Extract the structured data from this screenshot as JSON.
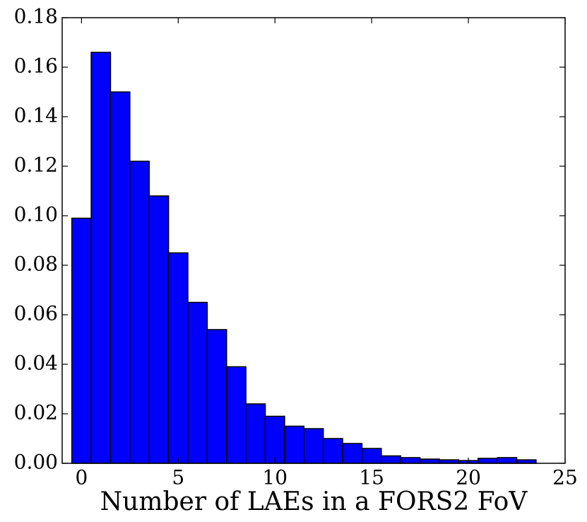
{
  "chart_data": {
    "type": "histogram",
    "xlabel": "Number of LAEs in a FORS2 FoV",
    "bins": [
      -0.5,
      0.5,
      1.5,
      2.5,
      3.5,
      4.5,
      5.5,
      6.5,
      7.5,
      8.5,
      9.5,
      10.5,
      11.5,
      12.5,
      13.5,
      14.5,
      15.5,
      16.5,
      17.5,
      18.5,
      19.5,
      20.5,
      21.5,
      22.5,
      23.5
    ],
    "counts": [
      0.099,
      0.166,
      0.15,
      0.122,
      0.108,
      0.085,
      0.065,
      0.054,
      0.039,
      0.024,
      0.019,
      0.015,
      0.014,
      0.01,
      0.008,
      0.006,
      0.003,
      0.0023,
      0.0017,
      0.0014,
      0.0011,
      0.002,
      0.0023,
      0.0014
    ],
    "color": "#0000ff",
    "xlim": [
      -1,
      25
    ],
    "xticks": [
      0,
      5,
      10,
      15,
      20,
      25
    ],
    "ylim": [
      0,
      0.18
    ],
    "yticks": [
      {
        "value": 0,
        "label": "0.00"
      },
      {
        "value": 0.02,
        "label": "0.02"
      },
      {
        "value": 0.04,
        "label": "0.04"
      },
      {
        "value": 0.06,
        "label": "0.06"
      },
      {
        "value": 0.08,
        "label": "0.08"
      },
      {
        "value": 0.1,
        "label": "0.10"
      },
      {
        "value": 0.12,
        "label": "0.12"
      },
      {
        "value": 0.14,
        "label": "0.14"
      },
      {
        "value": 0.16,
        "label": "0.16"
      },
      {
        "value": 0.18,
        "label": "0.18"
      }
    ]
  }
}
